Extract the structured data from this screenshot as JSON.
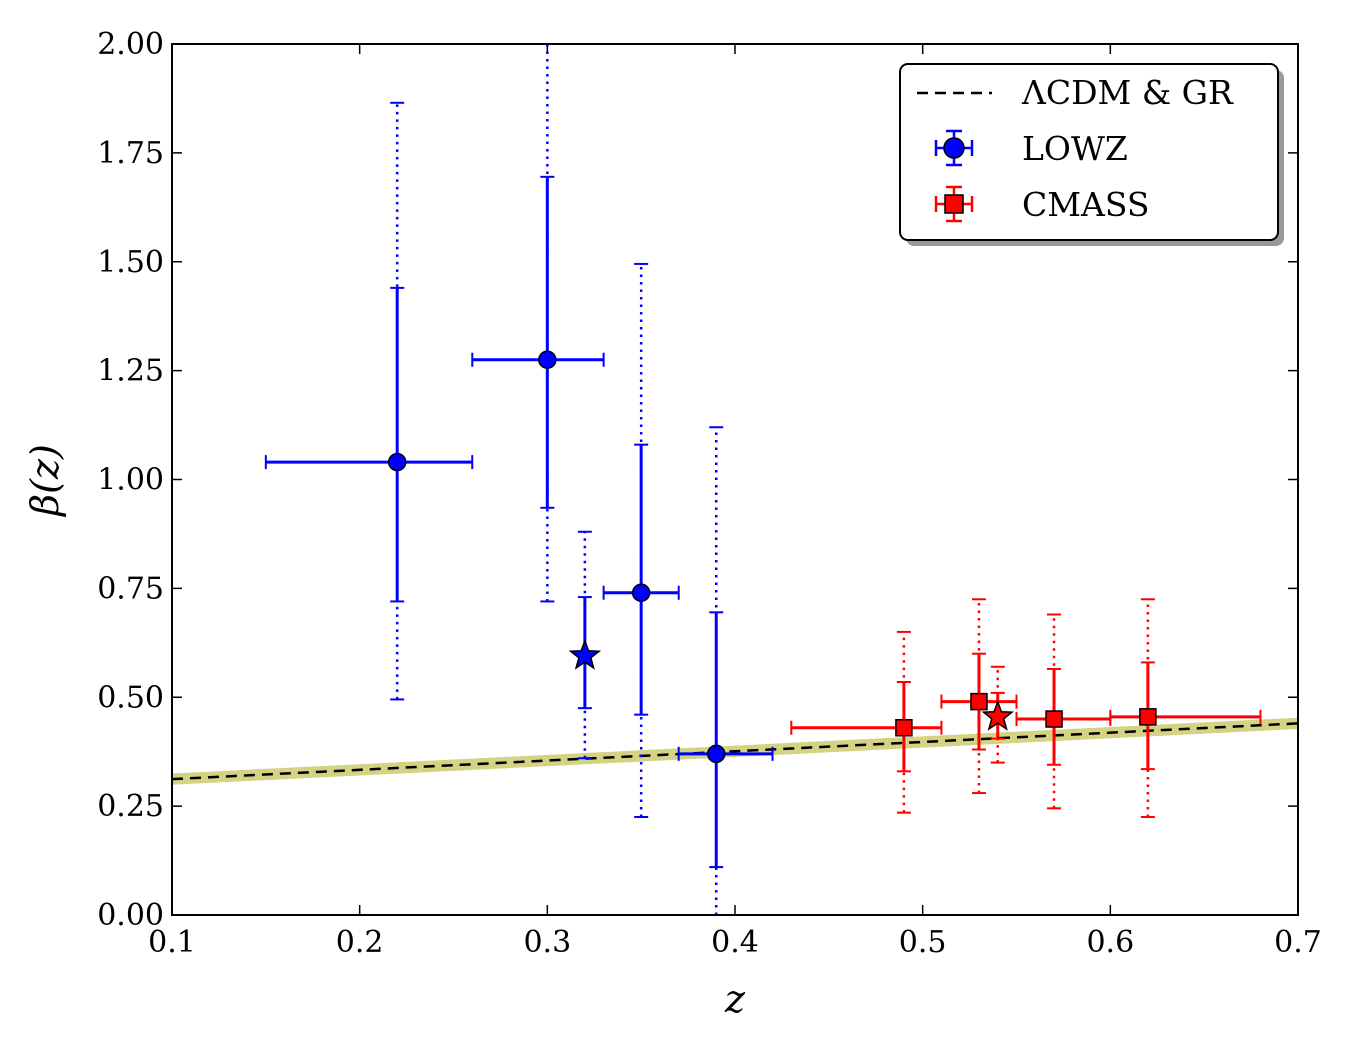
{
  "chart_data": {
    "type": "scatter",
    "xlabel": "z",
    "ylabel": "β(z)",
    "xlim": [
      0.1,
      0.7
    ],
    "ylim": [
      0.0,
      2.0
    ],
    "x_ticks": [
      "0.1",
      "0.2",
      "0.3",
      "0.4",
      "0.5",
      "0.6",
      "0.7"
    ],
    "y_ticks": [
      "0.00",
      "0.25",
      "0.50",
      "0.75",
      "1.00",
      "1.25",
      "1.50",
      "1.75",
      "2.00"
    ],
    "grid": false,
    "legend": {
      "position": "top-right",
      "entries": [
        "ΛCDM & GR",
        "LOWZ",
        "CMASS"
      ]
    },
    "theory": {
      "name": "ΛCDM & GR",
      "style": "dashed",
      "color": "#000000",
      "band_color": "#c8c864",
      "x": [
        0.1,
        0.7
      ],
      "y": [
        0.312,
        0.44
      ],
      "band_halfwidth": 0.013
    },
    "series": [
      {
        "name": "LOWZ",
        "color": "#0000ff",
        "marker": "circle",
        "points": [
          {
            "x": 0.22,
            "y": 1.04,
            "xerr": [
              0.15,
              0.26
            ],
            "yerr1": [
              0.72,
              1.44
            ],
            "yerr2": [
              0.495,
              1.865
            ]
          },
          {
            "x": 0.3,
            "y": 1.275,
            "xerr": [
              0.26,
              0.33
            ],
            "yerr1": [
              0.935,
              1.695
            ],
            "yerr2": [
              0.72,
              2.0
            ]
          },
          {
            "x": 0.35,
            "y": 0.74,
            "xerr": [
              0.33,
              0.37
            ],
            "yerr1": [
              0.46,
              1.08
            ],
            "yerr2": [
              0.225,
              1.495
            ]
          },
          {
            "x": 0.39,
            "y": 0.37,
            "xerr": [
              0.37,
              0.42
            ],
            "yerr1": [
              0.11,
              0.695
            ],
            "yerr2": [
              0.0,
              1.12
            ]
          }
        ],
        "star": {
          "x": 0.32,
          "y": 0.595,
          "yerr1": [
            0.475,
            0.73
          ],
          "yerr2": [
            0.36,
            0.88
          ]
        }
      },
      {
        "name": "CMASS",
        "color": "#ff0000",
        "marker": "square",
        "points": [
          {
            "x": 0.49,
            "y": 0.43,
            "xerr": [
              0.43,
              0.51
            ],
            "yerr1": [
              0.33,
              0.535
            ],
            "yerr2": [
              0.235,
              0.65
            ]
          },
          {
            "x": 0.53,
            "y": 0.49,
            "xerr": [
              0.51,
              0.55
            ],
            "yerr1": [
              0.38,
              0.6
            ],
            "yerr2": [
              0.28,
              0.725
            ]
          },
          {
            "x": 0.57,
            "y": 0.45,
            "xerr": [
              0.55,
              0.6
            ],
            "yerr1": [
              0.345,
              0.565
            ],
            "yerr2": [
              0.245,
              0.69
            ]
          },
          {
            "x": 0.62,
            "y": 0.455,
            "xerr": [
              0.6,
              0.68
            ],
            "yerr1": [
              0.335,
              0.58
            ],
            "yerr2": [
              0.225,
              0.725
            ]
          }
        ],
        "star": {
          "x": 0.54,
          "y": 0.455,
          "yerr1": [
            0.405,
            0.51
          ],
          "yerr2": [
            0.35,
            0.57
          ]
        }
      }
    ]
  }
}
